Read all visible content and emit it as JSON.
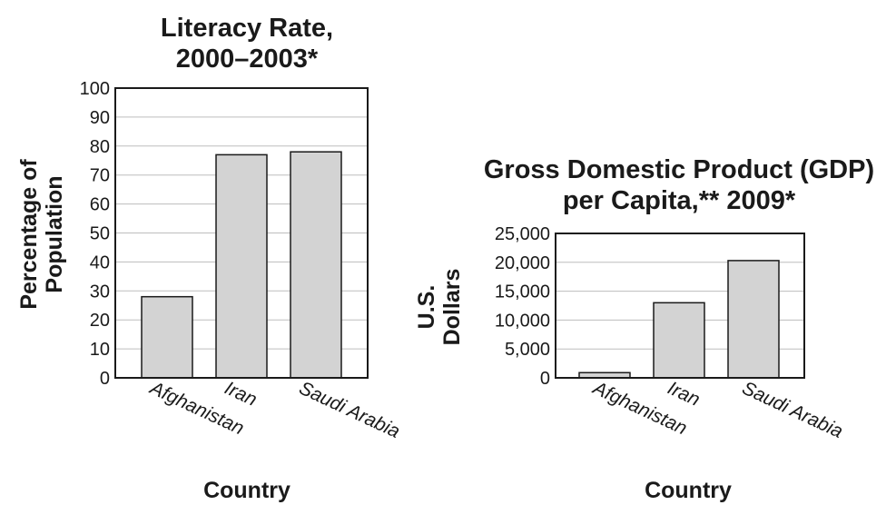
{
  "chart_data": [
    {
      "type": "bar",
      "title": [
        "Literacy Rate,",
        "2000–2003*"
      ],
      "ylabel": [
        "Percentage of",
        "Population"
      ],
      "xlabel": "Country",
      "categories": [
        "Afghanistan",
        "Iran",
        "Saudi Arabia"
      ],
      "values": [
        28,
        77,
        78
      ],
      "ylim": [
        0,
        100
      ],
      "yticks": [
        0,
        10,
        20,
        30,
        40,
        50,
        60,
        70,
        80,
        90,
        100
      ],
      "ytick_labels": [
        "0",
        "10",
        "20",
        "30",
        "40",
        "50",
        "60",
        "70",
        "80",
        "90",
        "100"
      ],
      "grid": true,
      "bar_color": "#d3d3d3"
    },
    {
      "type": "bar",
      "title": [
        "Gross Domestic Product (GDP)",
        "per Capita,** 2009*"
      ],
      "ylabel": [
        "U.S.",
        "Dollars"
      ],
      "xlabel": "Country",
      "categories": [
        "Afghanistan",
        "Iran",
        "Saudi Arabia"
      ],
      "values": [
        900,
        13000,
        20300
      ],
      "ylim": [
        0,
        25000
      ],
      "yticks": [
        0,
        5000,
        10000,
        15000,
        20000,
        25000
      ],
      "ytick_labels": [
        "0",
        "5,000",
        "10,000",
        "15,000",
        "20,000",
        "25,000"
      ],
      "grid": true,
      "bar_color": "#d3d3d3"
    }
  ]
}
